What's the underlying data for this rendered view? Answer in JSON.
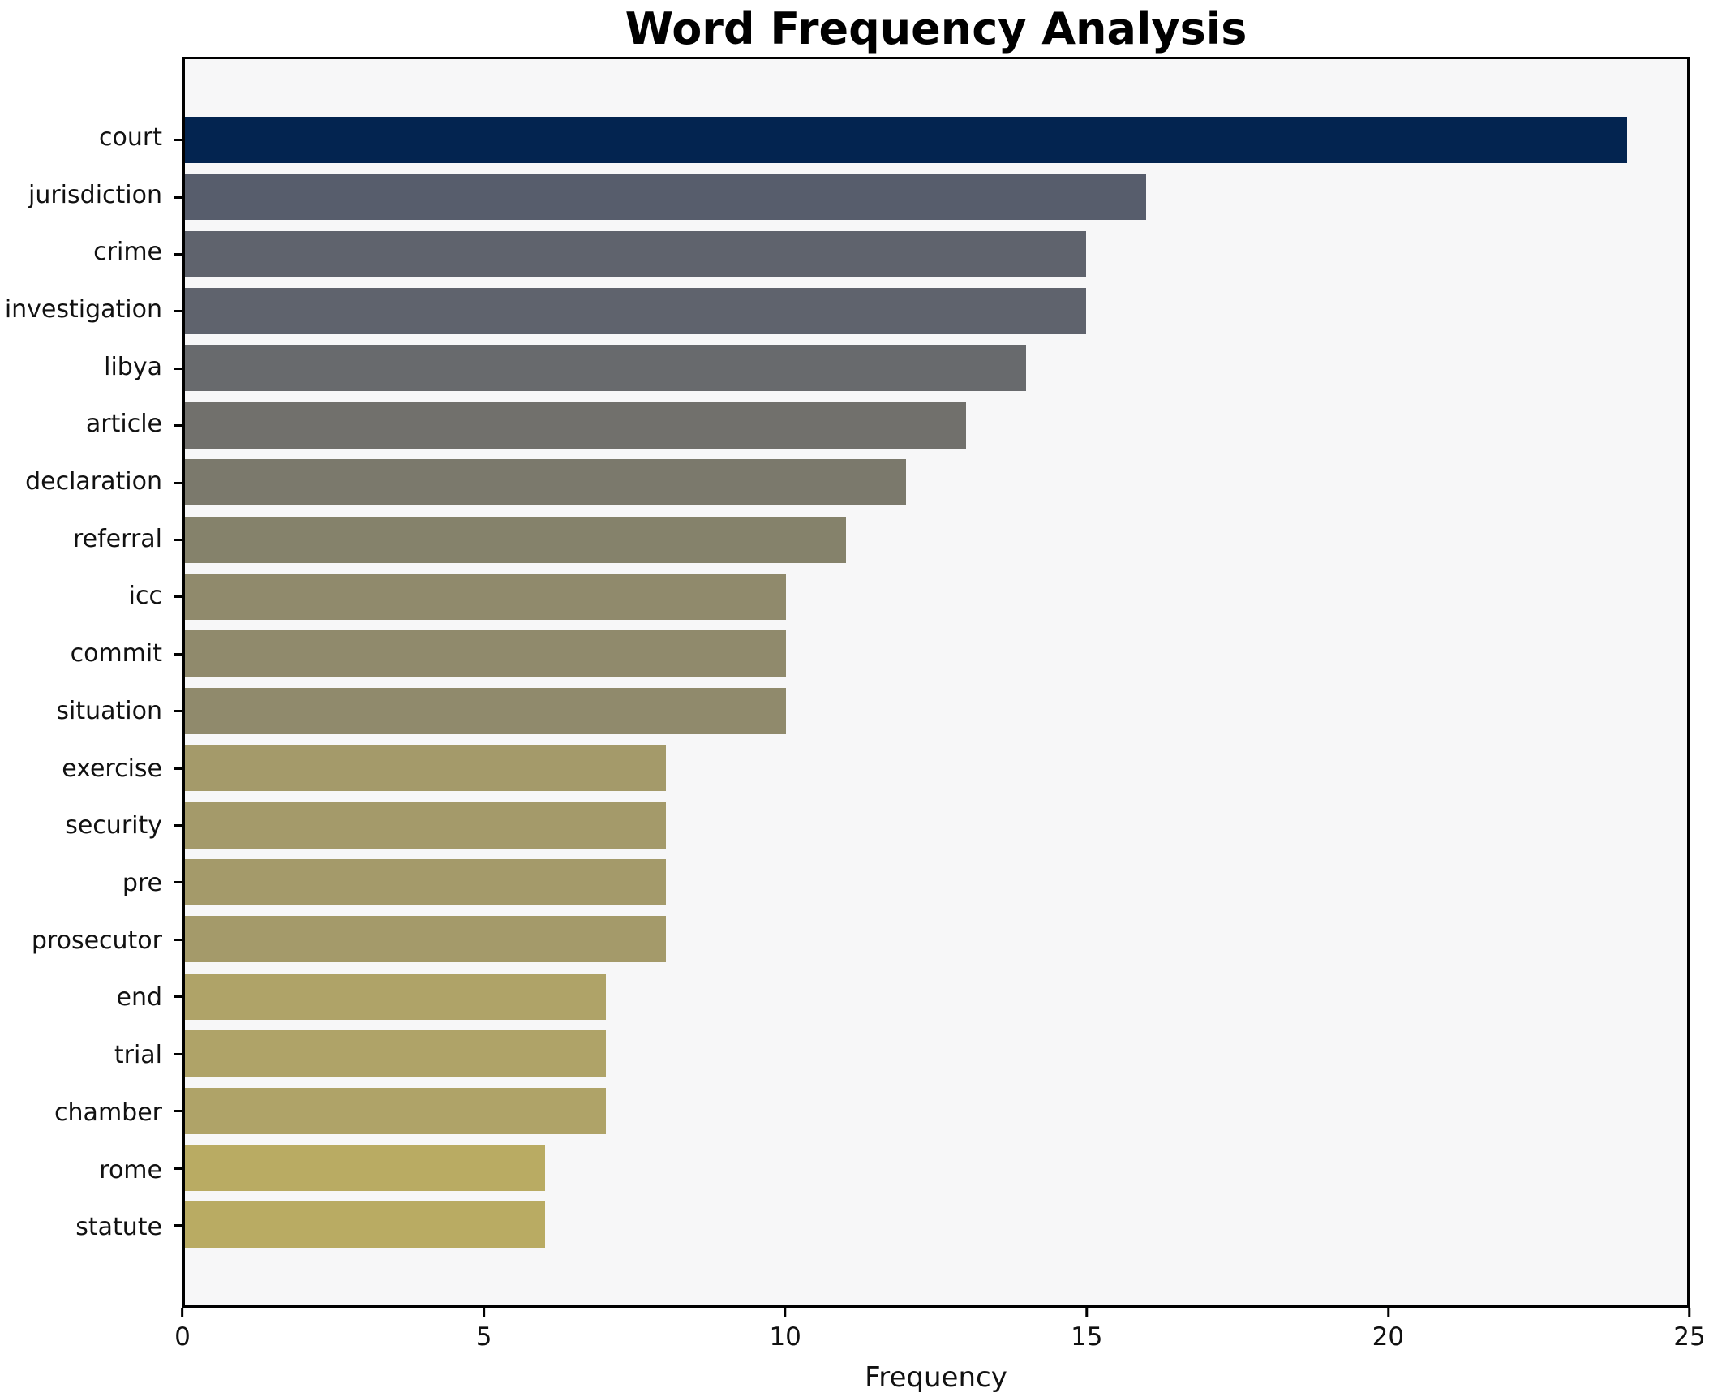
{
  "chart_data": {
    "type": "bar",
    "orientation": "horizontal",
    "title": "Word Frequency Analysis",
    "xlabel": "Frequency",
    "ylabel": "",
    "xlim": [
      0,
      25
    ],
    "x_ticks": [
      0,
      5,
      10,
      15,
      20,
      25
    ],
    "grid": false,
    "legend": false,
    "categories": [
      "court",
      "jurisdiction",
      "crime",
      "investigation",
      "libya",
      "article",
      "declaration",
      "referral",
      "icc",
      "commit",
      "situation",
      "exercise",
      "security",
      "pre",
      "prosecutor",
      "end",
      "trial",
      "chamber",
      "rome",
      "statute"
    ],
    "values": [
      24,
      16,
      15,
      15,
      14,
      13,
      12,
      11,
      10,
      10,
      10,
      8,
      8,
      8,
      8,
      7,
      7,
      7,
      6,
      6
    ],
    "bar_colors": [
      "#032450",
      "#575d6c",
      "#5f636d",
      "#5f636d",
      "#686a6d",
      "#71706c",
      "#7b796c",
      "#85826b",
      "#908a6c",
      "#908a6c",
      "#908a6c",
      "#a49a6a",
      "#a49a6a",
      "#a49a6a",
      "#a49a6a",
      "#afa368",
      "#afa368",
      "#afa368",
      "#b9ab63",
      "#b9ab63"
    ],
    "plot_background": "#f7f7f8",
    "figure_background": "#ffffff",
    "spine_color": "#000000"
  }
}
